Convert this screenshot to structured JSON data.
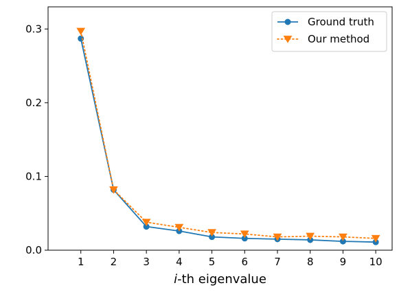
{
  "chart_data": {
    "type": "line",
    "xlabel_italic": "i",
    "xlabel_rest": "-th eigenvalue",
    "ylabel": "",
    "x": [
      1,
      2,
      3,
      4,
      5,
      6,
      7,
      8,
      9,
      10
    ],
    "xticks": [
      "1",
      "2",
      "3",
      "4",
      "5",
      "6",
      "7",
      "8",
      "9",
      "10"
    ],
    "yticks": [
      "0.0",
      "0.1",
      "0.2",
      "0.3"
    ],
    "xlim": [
      0,
      10.5
    ],
    "ylim": [
      0,
      0.33
    ],
    "grid": false,
    "legend_position": "top-right",
    "series": [
      {
        "name": "Ground truth",
        "values": [
          0.287,
          0.082,
          0.032,
          0.026,
          0.018,
          0.016,
          0.015,
          0.014,
          0.012,
          0.011
        ],
        "color": "#1f77b4",
        "line": "solid",
        "marker": "circle"
      },
      {
        "name": "Our method",
        "values": [
          0.297,
          0.082,
          0.038,
          0.031,
          0.024,
          0.022,
          0.018,
          0.019,
          0.018,
          0.016
        ],
        "color": "#ff7f0e",
        "line": "dotted",
        "marker": "triangle-down"
      }
    ]
  }
}
